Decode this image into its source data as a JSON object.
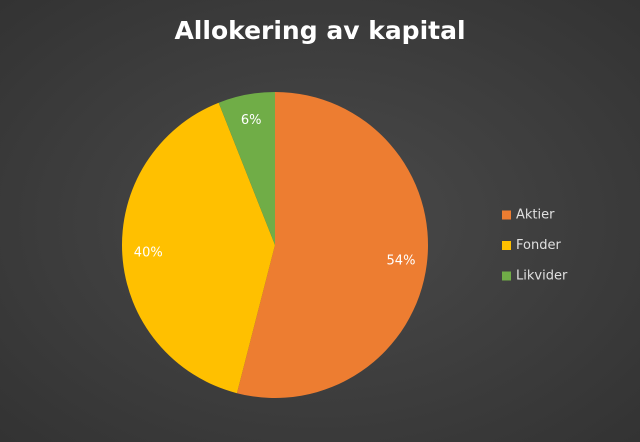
{
  "chart_data": {
    "type": "pie",
    "title": "Allokering av kapital",
    "categories": [
      "Aktier",
      "Fonder",
      "Likvider"
    ],
    "values": [
      54,
      40,
      6
    ],
    "value_labels": [
      "54%",
      "40%",
      "6%"
    ],
    "colors": [
      "#ed7d31",
      "#ffc000",
      "#70ad47"
    ],
    "legend": "right"
  }
}
